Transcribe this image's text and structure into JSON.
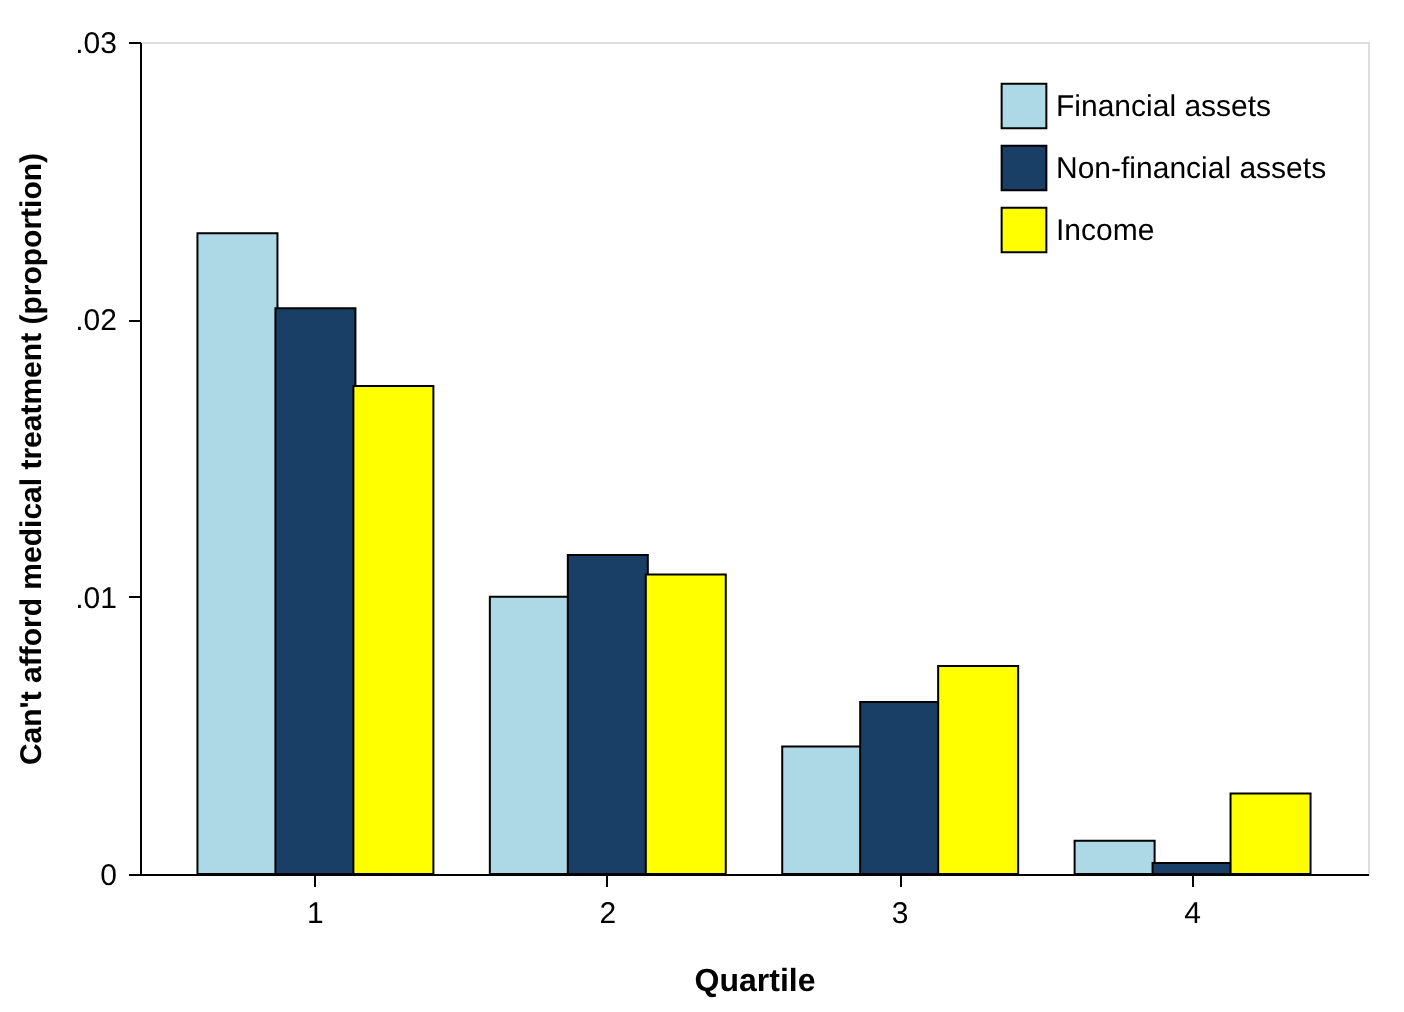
{
  "chart_data": {
    "type": "bar",
    "xlabel": "Quartile",
    "ylabel": "Can't afford medical treatment (proportion)",
    "categories": [
      "1",
      "2",
      "3",
      "4"
    ],
    "series": [
      {
        "name": "Financial assets",
        "color": "#add8e6",
        "values": [
          0.0231,
          0.01,
          0.0046,
          0.0012
        ]
      },
      {
        "name": "Non-financial assets",
        "color": "#1a3f66",
        "values": [
          0.0204,
          0.0115,
          0.0062,
          0.0004
        ]
      },
      {
        "name": "Income",
        "color": "#ffff00",
        "values": [
          0.0176,
          0.0108,
          0.0075,
          0.0029
        ]
      }
    ],
    "ylim": [
      0,
      0.03
    ],
    "yticks": [
      {
        "value": 0,
        "label": "0"
      },
      {
        "value": 0.01,
        "label": ".01"
      },
      {
        "value": 0.02,
        "label": ".02"
      },
      {
        "value": 0.03,
        "label": ".03"
      }
    ],
    "grid": false,
    "legend": "top right"
  }
}
